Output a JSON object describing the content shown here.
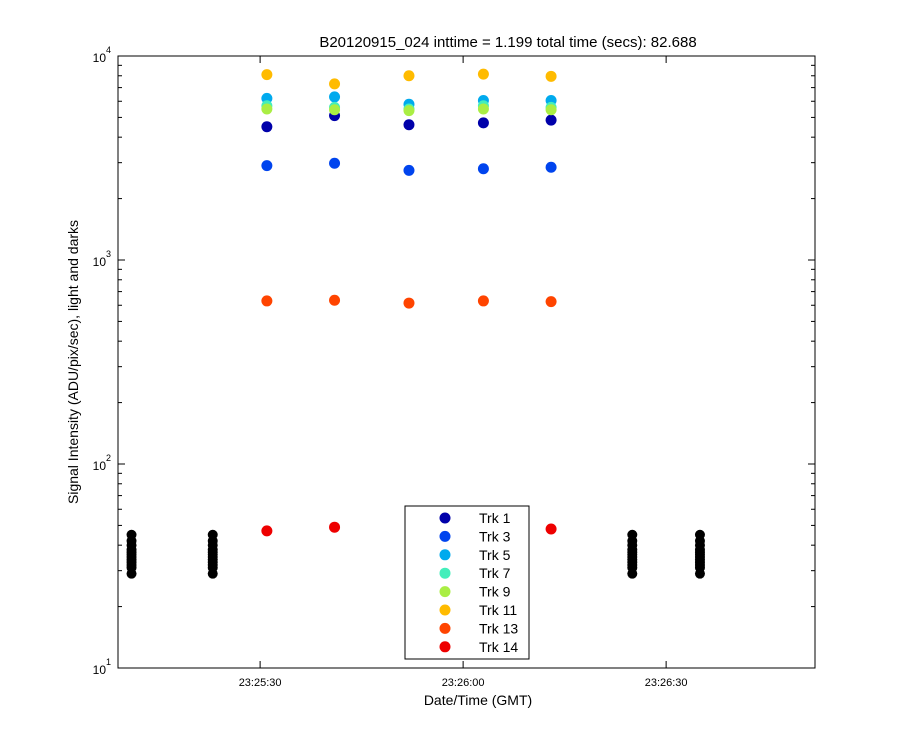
{
  "chart_data": {
    "type": "scatter",
    "title": "B20120915_024 inttime = 1.199 total time (secs): 82.688",
    "xlabel": "Date/Time (GMT)",
    "ylabel": "Signal Intensity (ADU/pix/sec), light and darks",
    "yscale": "log",
    "ylim": [
      10,
      10000
    ],
    "xlim": [
      "23:25:09",
      "23:26:52"
    ],
    "xticks": [
      "23:25:30",
      "23:26:00",
      "23:26:30"
    ],
    "yticks": [
      {
        "base": "10",
        "exp": "1",
        "value": 10
      },
      {
        "base": "10",
        "exp": "2",
        "value": 100
      },
      {
        "base": "10",
        "exp": "3",
        "value": 1000
      },
      {
        "base": "10",
        "exp": "4",
        "value": 10000
      }
    ],
    "grid": false,
    "legend_position": "bottom-center",
    "light_times": [
      "23:25:31",
      "23:25:41",
      "23:25:52",
      "23:26:03",
      "23:26:13"
    ],
    "series": [
      {
        "name": "Trk 1",
        "color": "#0000aa",
        "values": [
          4500,
          5100,
          4600,
          4700,
          4850
        ]
      },
      {
        "name": "Trk 3",
        "color": "#0044ee",
        "values": [
          2900,
          2980,
          2750,
          2800,
          2850
        ]
      },
      {
        "name": "Trk 5",
        "color": "#00aaee",
        "values": [
          6200,
          6300,
          5800,
          6050,
          6050
        ]
      },
      {
        "name": "Trk 7",
        "color": "#44eebb",
        "values": [
          5700,
          5600,
          5500,
          5700,
          5600
        ]
      },
      {
        "name": "Trk 9",
        "color": "#aaee44",
        "values": [
          5500,
          5450,
          5400,
          5500,
          5450
        ]
      },
      {
        "name": "Trk 11",
        "color": "#ffbb00",
        "values": [
          8100,
          7300,
          8000,
          8150,
          7950
        ]
      },
      {
        "name": "Trk 13",
        "color": "#ff4400",
        "values": [
          630,
          635,
          615,
          630,
          625
        ]
      },
      {
        "name": "Trk 14",
        "color": "#ee0000",
        "values": [
          47,
          49,
          null,
          null,
          48
        ]
      }
    ],
    "darks": {
      "color": "#000000",
      "times": [
        "23:25:11",
        "23:25:23",
        "23:26:25",
        "23:26:35"
      ],
      "values": [
        29,
        31,
        32,
        33,
        34,
        35,
        36,
        37,
        38,
        40,
        42,
        45
      ]
    }
  }
}
